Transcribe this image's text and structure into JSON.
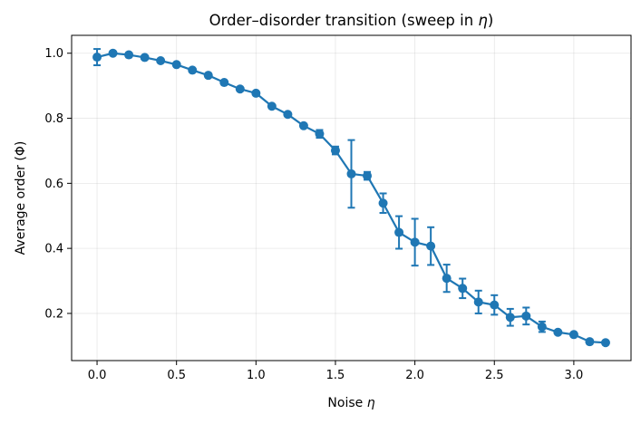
{
  "chart_data": {
    "type": "line",
    "title_main": "Order–disorder transition (sweep in ",
    "title_symbol": "η",
    "title_end": ")",
    "xlabel_main": "Noise ",
    "xlabel_symbol": "η",
    "ylabel": "Average order (Φ)",
    "xlim": [
      -0.16,
      3.36
    ],
    "ylim": [
      0.055,
      1.055
    ],
    "xticks": [
      0.0,
      0.5,
      1.0,
      1.5,
      2.0,
      2.5,
      3.0
    ],
    "xtick_labels": [
      "0.0",
      "0.5",
      "1.0",
      "1.5",
      "2.0",
      "2.5",
      "3.0"
    ],
    "yticks": [
      0.2,
      0.4,
      0.6,
      0.8,
      1.0
    ],
    "ytick_labels": [
      "0.2",
      "0.4",
      "0.6",
      "0.8",
      "1.0"
    ],
    "grid": true,
    "color": "#1f77b4",
    "series": [
      {
        "x": [
          0.0,
          0.1,
          0.2,
          0.3,
          0.4,
          0.5,
          0.6,
          0.7,
          0.8,
          0.9,
          1.0,
          1.1,
          1.2,
          1.3,
          1.4,
          1.5,
          1.6,
          1.7,
          1.8,
          1.9,
          2.0,
          2.1,
          2.2,
          2.3,
          2.4,
          2.5,
          2.6,
          2.7,
          2.8,
          2.9,
          3.0,
          3.1,
          3.2
        ],
        "y": [
          0.988,
          1.0,
          0.995,
          0.987,
          0.977,
          0.965,
          0.948,
          0.932,
          0.91,
          0.89,
          0.877,
          0.837,
          0.812,
          0.777,
          0.752,
          0.701,
          0.629,
          0.623,
          0.539,
          0.449,
          0.419,
          0.407,
          0.308,
          0.277,
          0.235,
          0.226,
          0.188,
          0.192,
          0.159,
          0.142,
          0.135,
          0.113,
          0.11
        ],
        "err": [
          0.025,
          0.005,
          0.006,
          0.004,
          0.004,
          0.004,
          0.004,
          0.004,
          0.004,
          0.005,
          0.004,
          0.004,
          0.005,
          0.004,
          0.012,
          0.012,
          0.104,
          0.012,
          0.03,
          0.05,
          0.072,
          0.058,
          0.042,
          0.03,
          0.035,
          0.03,
          0.026,
          0.026,
          0.016,
          0.005,
          0.005,
          0.006,
          0.005
        ]
      }
    ]
  }
}
